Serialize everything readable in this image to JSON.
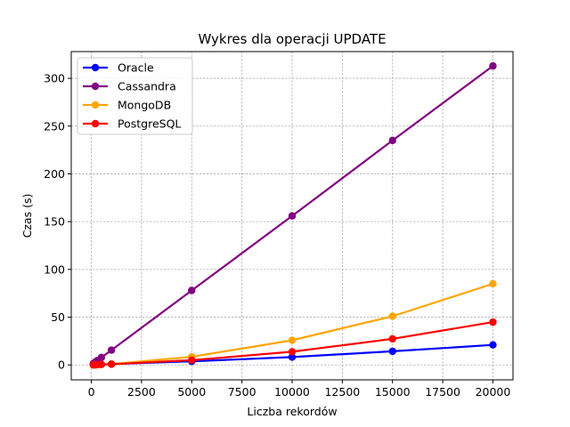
{
  "chart_data": {
    "type": "line",
    "title": "Wykres dla operacji UPDATE",
    "xlabel": "Liczba rekordów",
    "ylabel": "Czas (s)",
    "xlim": [
      -1000,
      21000
    ],
    "ylim": [
      -15.6,
      328
    ],
    "xticks": [
      0,
      2500,
      5000,
      7500,
      10000,
      12500,
      15000,
      17500,
      20000
    ],
    "yticks": [
      0,
      50,
      100,
      150,
      200,
      250,
      300
    ],
    "grid": true,
    "legend_position": "top-left",
    "x": [
      100,
      200,
      300,
      500,
      1000,
      5000,
      10000,
      15000,
      20000
    ],
    "series": [
      {
        "name": "Oracle",
        "color": "#0000ff",
        "values": [
          0.1,
          0.2,
          0.3,
          0.5,
          1.0,
          3.8,
          8.2,
          14.3,
          21.0
        ]
      },
      {
        "name": "Cassandra",
        "color": "#800080",
        "values": [
          1.5,
          3.1,
          4.6,
          7.8,
          15.5,
          78.0,
          156.0,
          235.0,
          313.0
        ]
      },
      {
        "name": "MongoDB",
        "color": "#ffa500",
        "values": [
          0.05,
          0.1,
          0.2,
          0.4,
          0.9,
          8.5,
          25.8,
          51.0,
          85.0
        ]
      },
      {
        "name": "PostgreSQL",
        "color": "#ff0000",
        "values": [
          0.1,
          0.2,
          0.3,
          0.5,
          0.8,
          5.0,
          13.8,
          27.3,
          44.8
        ]
      }
    ]
  }
}
